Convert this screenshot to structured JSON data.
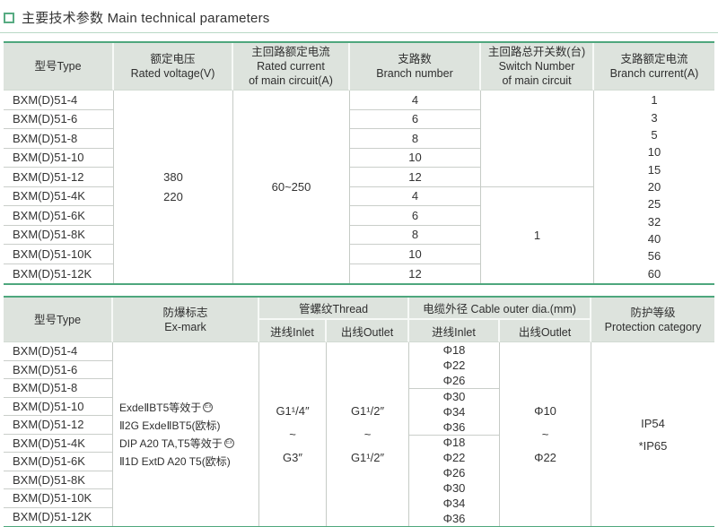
{
  "colors": {
    "accent_green": "#4ea77d",
    "header_bg": "#dde3dd",
    "grid_line": "#c6cbc6",
    "light_rule": "#b9d8c6",
    "text": "#333333"
  },
  "title": {
    "text": "主要技术参数 Main technical parameters"
  },
  "model_types": [
    "BXM(D)51-4",
    "BXM(D)51-6",
    "BXM(D)51-8",
    "BXM(D)51-10",
    "BXM(D)51-12",
    "BXM(D)51-4K",
    "BXM(D)51-6K",
    "BXM(D)51-8K",
    "BXM(D)51-10K",
    "BXM(D)51-12K"
  ],
  "table1": {
    "header": {
      "type": "型号Type",
      "voltage_zh": "额定电压",
      "voltage_en": "Rated voltage(V)",
      "main_current_zh": "主回路额定电流",
      "main_current_en1": "Rated current",
      "main_current_en2": "of main circuit(A)",
      "branch_zh": "支路数",
      "branch_en": "Branch number",
      "switch_zh": "主回路总开关数(台)",
      "switch_en1": "Switch Number",
      "switch_en2": "of main circuit",
      "branch_current_zh": "支路额定电流",
      "branch_current_en": "Branch current(A)"
    },
    "rated_voltages": [
      "380",
      "220"
    ],
    "main_circuit_current": "60~250",
    "branch_numbers": [
      "4",
      "6",
      "8",
      "10",
      "12",
      "4",
      "6",
      "8",
      "10",
      "12"
    ],
    "switch_number": "1",
    "branch_currents": [
      "1",
      "3",
      "5",
      "10",
      "15",
      "20",
      "25",
      "32",
      "40",
      "56",
      "60"
    ]
  },
  "table2": {
    "header": {
      "type": "型号Type",
      "exmark_zh": "防爆标志",
      "exmark_en": "Ex-mark",
      "thread": "管螺纹Thread",
      "cable": "电缆外径 Cable outer dia.(mm)",
      "inlet": "进线Inlet",
      "outlet": "出线Outlet",
      "protection_zh": "防护等级",
      "protection_en": "Protection category"
    },
    "ex_mark_lines": [
      "ExdeⅡBT5等效于",
      "Ⅱ2G ExdeⅡBT5(欧标)",
      "DIP A20 TA,T5等效于",
      "Ⅱ1D ExtD A20 T5(欧标)"
    ],
    "atex_icon_label": "Ex",
    "thread_inlet": [
      "G1¹/4″",
      "~",
      "G3″"
    ],
    "thread_outlet": [
      "G1¹/2″",
      "~",
      "G1¹/2″"
    ],
    "cable_inlet_cells": [
      [
        "Φ18",
        "Φ22",
        "Φ26"
      ],
      [
        "Φ30",
        "Φ34",
        "Φ36"
      ],
      [
        "Φ18",
        "Φ22",
        "Φ26",
        "Φ30",
        "Φ34",
        "Φ36"
      ]
    ],
    "cable_outlet": [
      "Φ10",
      "~",
      "Φ22"
    ],
    "protection": [
      "IP54",
      "*IP65"
    ]
  }
}
